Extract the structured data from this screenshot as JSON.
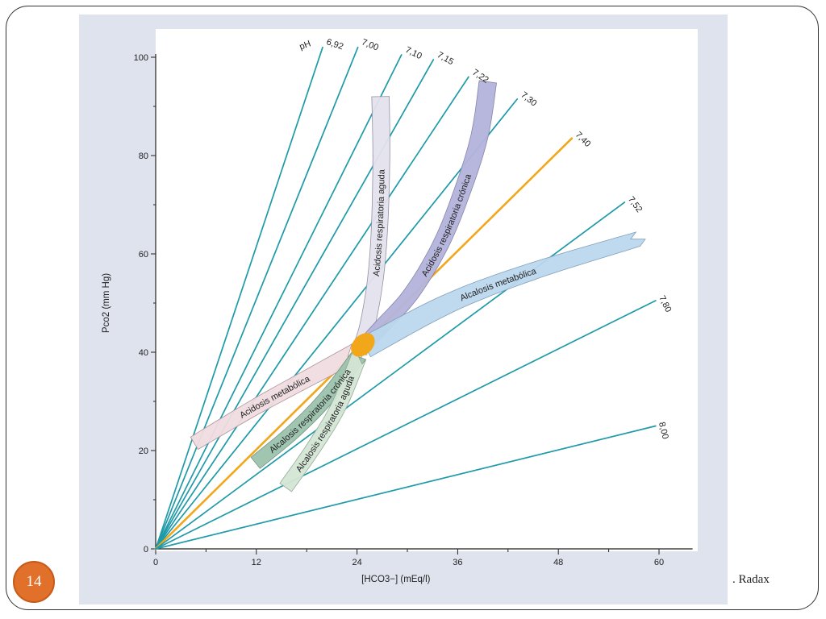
{
  "slide": {
    "number": "14",
    "footer_text": ". Radax"
  },
  "chart_data": {
    "type": "line",
    "title": "",
    "xlabel": "[HCO3−] (mEq/l)",
    "ylabel": "Pco2 (mm Hg)",
    "xlim": [
      0,
      64
    ],
    "ylim": [
      0,
      100
    ],
    "x_ticks": [
      0,
      12,
      24,
      36,
      48,
      60
    ],
    "y_ticks": [
      0,
      20,
      40,
      60,
      80,
      100
    ],
    "ph_prefix": "pH",
    "colors": {
      "iso_line": "#1e9aa8",
      "normal_line": "#f2a71b",
      "normal_zone": "#f2a71b"
    },
    "series": [
      {
        "name": "6,92",
        "points": [
          [
            0,
            0
          ],
          [
            19.9,
            102
          ]
        ]
      },
      {
        "name": "7,00",
        "points": [
          [
            0,
            0
          ],
          [
            24.1,
            102
          ]
        ]
      },
      {
        "name": "7,10",
        "points": [
          [
            0,
            0
          ],
          [
            29.3,
            100.5
          ]
        ]
      },
      {
        "name": "7,15",
        "points": [
          [
            0,
            0
          ],
          [
            33.1,
            99.5
          ]
        ]
      },
      {
        "name": "7,22",
        "points": [
          [
            0,
            0
          ],
          [
            37.3,
            96
          ]
        ]
      },
      {
        "name": "7,30",
        "points": [
          [
            0,
            0
          ],
          [
            43.1,
            91.5
          ]
        ]
      },
      {
        "name": "7,40",
        "points": [
          [
            0,
            0
          ],
          [
            49.6,
            83.5
          ]
        ],
        "highlight": true
      },
      {
        "name": "7,52",
        "points": [
          [
            0,
            0
          ],
          [
            55.9,
            70.5
          ]
        ]
      },
      {
        "name": "7,80",
        "points": [
          [
            0,
            0
          ],
          [
            59.6,
            50.5
          ]
        ]
      },
      {
        "name": "8,00",
        "points": [
          [
            0,
            0
          ],
          [
            59.6,
            25
          ]
        ]
      }
    ],
    "bands": [
      {
        "name": "Acidosis respiratoria aguda",
        "color": "#e4e2ee",
        "stroke": "#8c8ca0",
        "centerline": [
          [
            26.8,
            92
          ],
          [
            26.9,
            80
          ],
          [
            26.7,
            66
          ],
          [
            26.2,
            55
          ],
          [
            25.3,
            46
          ],
          [
            24.4,
            41
          ]
        ],
        "width": [
          3.4,
          2.8
        ]
      },
      {
        "name": "Acidosis respiratoria crónica",
        "color": "#b4b4dc",
        "stroke": "#7f7fa8",
        "centerline": [
          [
            39.6,
            95
          ],
          [
            38.6,
            84
          ],
          [
            36.6,
            73
          ],
          [
            34.0,
            62
          ],
          [
            30.5,
            52
          ],
          [
            26.8,
            45
          ],
          [
            24.6,
            41
          ]
        ],
        "width": [
          3.4,
          2.8
        ]
      },
      {
        "name": "Alcalosis metabólica",
        "color": "#bcd7ee",
        "stroke": "#7b9cb8",
        "centerline": [
          [
            25.0,
            41
          ],
          [
            35.0,
            50
          ],
          [
            45.0,
            56.5
          ],
          [
            57.5,
            63
          ]
        ],
        "width": [
          4.2,
          2.8
        ]
      },
      {
        "name": "Acidosis metabólica",
        "color": "#f1dde1",
        "stroke": "#a89096",
        "centerline": [
          [
            4.6,
            21.5
          ],
          [
            12.0,
            29
          ],
          [
            19.0,
            35.5
          ],
          [
            23.9,
            40
          ]
        ],
        "width": [
          2.8,
          3.6
        ]
      },
      {
        "name": "Alcalosis respiratoria crónica",
        "color": "#9bc3ad",
        "stroke": "#6f8f7d",
        "centerline": [
          [
            11.9,
            17.5
          ],
          [
            16.5,
            24
          ],
          [
            20.5,
            31
          ],
          [
            24.3,
            39.5
          ]
        ],
        "width": [
          2.8,
          3.0
        ]
      },
      {
        "name": "Alcalosis respiratoria aguda",
        "color": "#d4e6d6",
        "stroke": "#8fa793",
        "centerline": [
          [
            15.5,
            12.5
          ],
          [
            18.8,
            20.5
          ],
          [
            21.8,
            29
          ],
          [
            24.2,
            39
          ]
        ],
        "width": [
          2.8,
          3.0
        ]
      }
    ],
    "normal_zone": {
      "center": [
        24.7,
        41.5
      ],
      "note": "normal acid-base zone"
    }
  }
}
